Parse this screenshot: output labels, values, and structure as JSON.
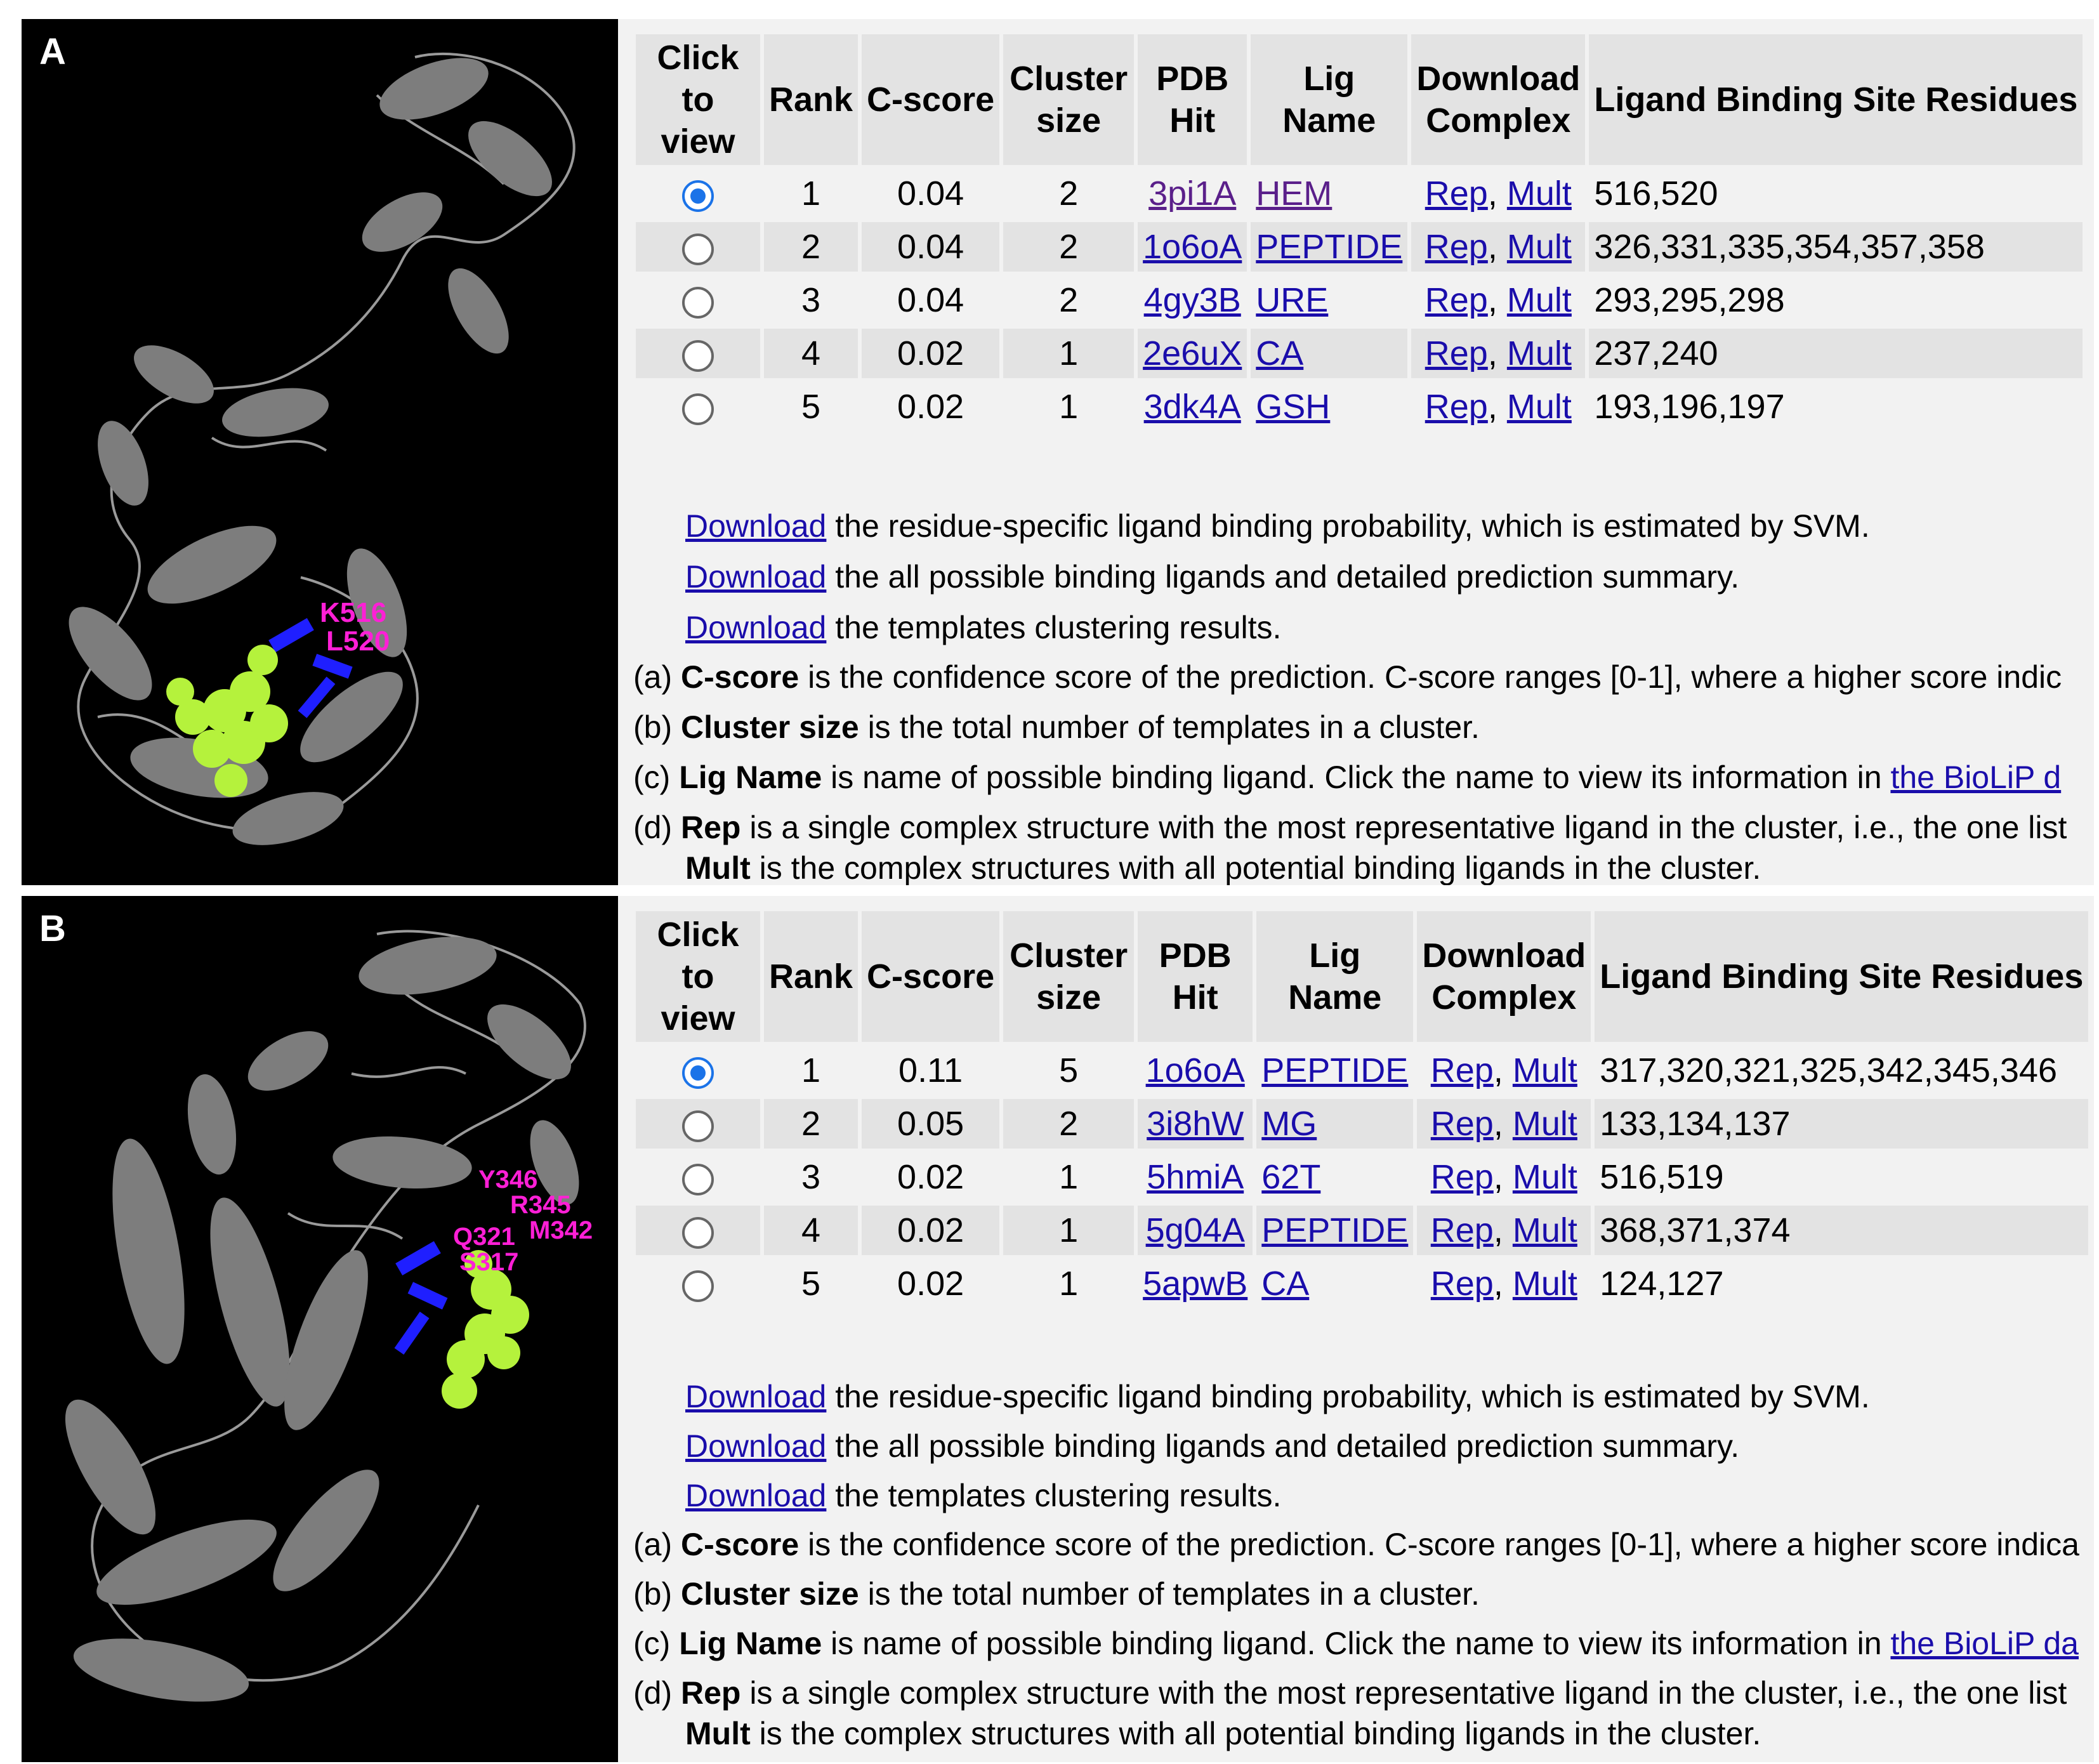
{
  "panels": {
    "A": {
      "label": "A",
      "residue_labels": [
        "K516",
        "L520"
      ],
      "headers": {
        "click": "Click to view",
        "rank": "Rank",
        "cscore": "C-score",
        "cluster": "Cluster size",
        "pdb": "PDB Hit",
        "lig": "Lig Name",
        "download": "Download Complex",
        "residues": "Ligand Binding Site Residues"
      },
      "rows": [
        {
          "selected": true,
          "rank": "1",
          "cscore": "0.04",
          "cluster": "2",
          "pdb": "3pi1A",
          "lig": "HEM",
          "rep": "Rep",
          "sep": ",",
          "mult": "Mult",
          "residues": "516,520"
        },
        {
          "selected": false,
          "rank": "2",
          "cscore": "0.04",
          "cluster": "2",
          "pdb": "1o6oA",
          "lig": "PEPTIDE",
          "rep": "Rep",
          "sep": ",",
          "mult": "Mult",
          "residues": "326,331,335,354,357,358"
        },
        {
          "selected": false,
          "rank": "3",
          "cscore": "0.04",
          "cluster": "2",
          "pdb": "4gy3B",
          "lig": "URE",
          "rep": "Rep",
          "sep": ",",
          "mult": "Mult",
          "residues": "293,295,298"
        },
        {
          "selected": false,
          "rank": "4",
          "cscore": "0.02",
          "cluster": "1",
          "pdb": "2e6uX",
          "lig": "CA",
          "rep": "Rep",
          "sep": ",",
          "mult": "Mult",
          "residues": "237,240"
        },
        {
          "selected": false,
          "rank": "5",
          "cscore": "0.02",
          "cluster": "1",
          "pdb": "3dk4A",
          "lig": "GSH",
          "rep": "Rep",
          "sep": ",",
          "mult": "Mult",
          "residues": "193,196,197"
        }
      ],
      "downloads": [
        {
          "link": "Download",
          "text": " the residue-specific ligand binding probability, which is estimated by SVM."
        },
        {
          "link": "Download",
          "text": " the all possible binding ligands and detailed prediction summary."
        },
        {
          "link": "Download",
          "text": " the templates clustering results."
        }
      ],
      "notes": {
        "a": {
          "prefix": "(a) ",
          "term": "C-score",
          "text": " is the confidence score of the prediction. C-score ranges [0-1], where a higher score indic"
        },
        "b": {
          "prefix": "(b) ",
          "term": "Cluster size",
          "text": " is the total number of templates in a cluster."
        },
        "c": {
          "prefix": "(c) ",
          "term": "Lig Name",
          "text": " is name of possible binding ligand. Click the name to view its information in ",
          "link": "the BioLiP d"
        },
        "d": {
          "prefix": "(d) ",
          "term": "Rep",
          "text": " is a single complex structure with the most representative ligand in the cluster, i.e., the one list",
          "term2": "Mult",
          "text2": " is the complex structures with all potential binding ligands in the cluster."
        }
      }
    },
    "B": {
      "label": "B",
      "residue_labels": [
        "Y346",
        "R345",
        "M342",
        "Q321",
        "S317"
      ],
      "headers": {
        "click": "Click to view",
        "rank": "Rank",
        "cscore": "C-score",
        "cluster": "Cluster size",
        "pdb": "PDB Hit",
        "lig": "Lig Name",
        "download": "Download Complex",
        "residues": "Ligand Binding Site Residues"
      },
      "rows": [
        {
          "selected": true,
          "rank": "1",
          "cscore": "0.11",
          "cluster": "5",
          "pdb": "1o6oA",
          "lig": "PEPTIDE",
          "rep": "Rep",
          "sep": ",",
          "mult": "Mult",
          "residues": "317,320,321,325,342,345,346"
        },
        {
          "selected": false,
          "rank": "2",
          "cscore": "0.05",
          "cluster": "2",
          "pdb": "3i8hW",
          "lig": "MG",
          "rep": "Rep",
          "sep": ",",
          "mult": "Mult",
          "residues": "133,134,137"
        },
        {
          "selected": false,
          "rank": "3",
          "cscore": "0.02",
          "cluster": "1",
          "pdb": "5hmiA",
          "lig": "62T",
          "rep": "Rep",
          "sep": ",",
          "mult": "Mult",
          "residues": "516,519"
        },
        {
          "selected": false,
          "rank": "4",
          "cscore": "0.02",
          "cluster": "1",
          "pdb": "5g04A",
          "lig": "PEPTIDE",
          "rep": "Rep",
          "sep": ",",
          "mult": "Mult",
          "residues": "368,371,374"
        },
        {
          "selected": false,
          "rank": "5",
          "cscore": "0.02",
          "cluster": "1",
          "pdb": "5apwB",
          "lig": "CA",
          "rep": "Rep",
          "sep": ",",
          "mult": "Mult",
          "residues": "124,127"
        }
      ],
      "downloads": [
        {
          "link": "Download",
          "text": " the residue-specific ligand binding probability, which is estimated by SVM."
        },
        {
          "link": "Download",
          "text": " the all possible binding ligands and detailed prediction summary."
        },
        {
          "link": "Download",
          "text": " the templates clustering results."
        }
      ],
      "notes": {
        "a": {
          "prefix": "(a) ",
          "term": "C-score",
          "text": " is the confidence score of the prediction. C-score ranges [0-1], where a higher score indica"
        },
        "b": {
          "prefix": "(b) ",
          "term": "Cluster size",
          "text": " is the total number of templates in a cluster."
        },
        "c": {
          "prefix": "(c) ",
          "term": "Lig Name",
          "text": " is name of possible binding ligand. Click the name to view its information in ",
          "link": "the BioLiP da"
        },
        "d": {
          "prefix": "(d) ",
          "term": "Rep",
          "text": " is a single complex structure with the most representative ligand in the cluster, i.e., the one list",
          "term2": "Mult",
          "text2": " is the complex structures with all potential binding ligands in the cluster."
        }
      }
    }
  },
  "colors": {
    "link": "#1a0dab",
    "visited": "#5a1f8a",
    "radio_selected": "#1b73e8",
    "header_bg": "#e3e3e3",
    "ligand": "#b5f23c",
    "residue_label": "#ff1fd6",
    "binding_residues": "#1f1fff",
    "protein": "#8a8a8a"
  }
}
